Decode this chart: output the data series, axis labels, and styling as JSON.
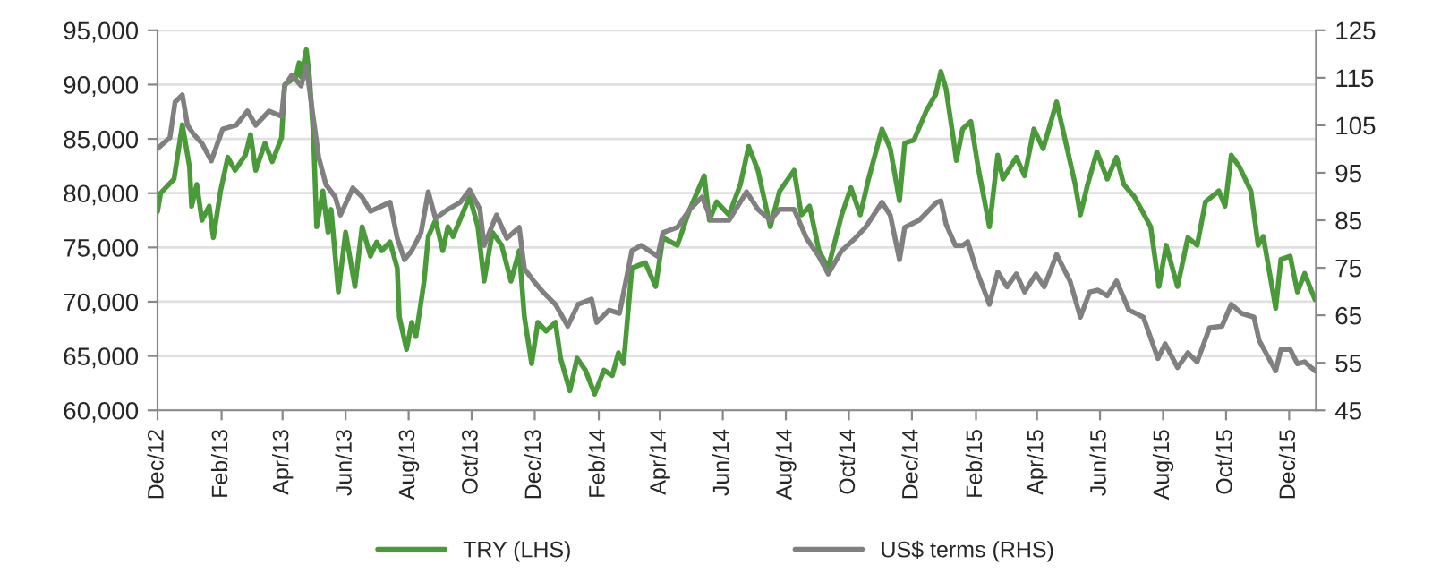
{
  "chart_data": {
    "type": "line",
    "xlim": [
      "2012-12-01",
      "2015-12-27"
    ],
    "xticks": [
      {
        "value": "2012-12-01",
        "label": "Dec/12"
      },
      {
        "value": "2013-02-01",
        "label": "Feb/13"
      },
      {
        "value": "2013-04-01",
        "label": "Apr/13"
      },
      {
        "value": "2013-06-01",
        "label": "Jun/13"
      },
      {
        "value": "2013-08-01",
        "label": "Aug/13"
      },
      {
        "value": "2013-10-01",
        "label": "Oct/13"
      },
      {
        "value": "2013-12-01",
        "label": "Dec/13"
      },
      {
        "value": "2014-02-01",
        "label": "Feb/14"
      },
      {
        "value": "2014-04-01",
        "label": "Apr/14"
      },
      {
        "value": "2014-06-01",
        "label": "Jun/14"
      },
      {
        "value": "2014-08-01",
        "label": "Aug/14"
      },
      {
        "value": "2014-10-01",
        "label": "Oct/14"
      },
      {
        "value": "2014-12-01",
        "label": "Dec/14"
      },
      {
        "value": "2015-02-01",
        "label": "Feb/15"
      },
      {
        "value": "2015-04-01",
        "label": "Apr/15"
      },
      {
        "value": "2015-06-01",
        "label": "Jun/15"
      },
      {
        "value": "2015-08-01",
        "label": "Aug/15"
      },
      {
        "value": "2015-10-01",
        "label": "Oct/15"
      },
      {
        "value": "2015-12-01",
        "label": "Dec/15"
      }
    ],
    "ylim": [
      60000,
      95000
    ],
    "yticks": [
      {
        "value": 60000,
        "label": "60,000"
      },
      {
        "value": 65000,
        "label": "65,000"
      },
      {
        "value": 70000,
        "label": "70,000"
      },
      {
        "value": 75000,
        "label": "75,000"
      },
      {
        "value": 80000,
        "label": "80,000"
      },
      {
        "value": 85000,
        "label": "85,000"
      },
      {
        "value": 90000,
        "label": "90,000"
      },
      {
        "value": 95000,
        "label": "95,000"
      }
    ],
    "y2lim": [
      45,
      125
    ],
    "y2ticks": [
      45,
      55,
      65,
      75,
      85,
      95,
      105,
      115,
      125
    ],
    "grid": "y",
    "legend": "bottom",
    "series": [
      {
        "name": "TRY (LHS)",
        "color": "#4a9a3a",
        "x": [
          "2012-12-01",
          "2012-12-04",
          "2012-12-17",
          "2012-12-25",
          "2013-01-01",
          "2013-01-03",
          "2013-01-08",
          "2013-01-13",
          "2013-01-20",
          "2013-01-24",
          "2013-01-31",
          "2013-02-07",
          "2013-02-14",
          "2013-02-24",
          "2013-03-01",
          "2013-03-06",
          "2013-03-15",
          "2013-03-22",
          "2013-03-31",
          "2013-04-03",
          "2013-04-14",
          "2013-04-17",
          "2013-04-19",
          "2013-04-24",
          "2013-04-27",
          "2013-05-01",
          "2013-05-04",
          "2013-05-10",
          "2013-05-15",
          "2013-05-18",
          "2013-05-25",
          "2013-06-01",
          "2013-06-10",
          "2013-06-17",
          "2013-06-25",
          "2013-07-01",
          "2013-07-06",
          "2013-07-14",
          "2013-07-21",
          "2013-07-23",
          "2013-07-30",
          "2013-08-04",
          "2013-08-08",
          "2013-08-16",
          "2013-08-20",
          "2013-08-27",
          "2013-09-03",
          "2013-09-08",
          "2013-09-13",
          "2013-09-29",
          "2013-10-07",
          "2013-10-13",
          "2013-10-21",
          "2013-10-30",
          "2013-11-08",
          "2013-11-16",
          "2013-11-21",
          "2013-11-28",
          "2013-12-04",
          "2013-12-12",
          "2013-12-21",
          "2013-12-26",
          "2014-01-04",
          "2014-01-11",
          "2014-01-19",
          "2014-01-28",
          "2014-02-06",
          "2014-02-14",
          "2014-02-20",
          "2014-02-25",
          "2014-03-05",
          "2014-03-18",
          "2014-03-28",
          "2014-04-04",
          "2014-04-18",
          "2014-04-30",
          "2014-05-14",
          "2014-05-19",
          "2014-05-26",
          "2014-06-07",
          "2014-06-18",
          "2014-06-26",
          "2014-07-05",
          "2014-07-17",
          "2014-07-26",
          "2014-08-09",
          "2014-08-16",
          "2014-08-24",
          "2014-09-02",
          "2014-09-11",
          "2014-09-24",
          "2014-10-03",
          "2014-10-12",
          "2014-10-20",
          "2014-11-02",
          "2014-11-10",
          "2014-11-19",
          "2014-11-24",
          "2014-12-03",
          "2014-12-15",
          "2014-12-24",
          "2014-12-29",
          "2015-01-03",
          "2015-01-10",
          "2015-01-13",
          "2015-01-19",
          "2015-01-27",
          "2015-02-03",
          "2015-02-14",
          "2015-02-22",
          "2015-02-27",
          "2015-03-12",
          "2015-03-20",
          "2015-03-29",
          "2015-04-07",
          "2015-04-20",
          "2015-04-29",
          "2015-05-08",
          "2015-05-13",
          "2015-05-20",
          "2015-05-29",
          "2015-06-08",
          "2015-06-17",
          "2015-06-24",
          "2015-07-04",
          "2015-07-11",
          "2015-07-20",
          "2015-07-28",
          "2015-08-04",
          "2015-08-15",
          "2015-08-25",
          "2015-09-03",
          "2015-09-11",
          "2015-09-24",
          "2015-09-30",
          "2015-10-06",
          "2015-10-14",
          "2015-10-25",
          "2015-11-01",
          "2015-11-06",
          "2015-11-18",
          "2015-11-23",
          "2015-12-02",
          "2015-12-09",
          "2015-12-16",
          "2015-12-26"
        ],
        "values": [
          78300,
          80000,
          81300,
          86300,
          82400,
          78800,
          80800,
          77500,
          78800,
          75900,
          80200,
          83300,
          82100,
          83500,
          85400,
          82100,
          84600,
          82900,
          85100,
          90000,
          90700,
          92000,
          90700,
          93200,
          90700,
          85100,
          76900,
          80200,
          76400,
          78500,
          70900,
          76400,
          71400,
          76900,
          74200,
          75500,
          74700,
          75500,
          73100,
          68600,
          65600,
          68100,
          66800,
          71900,
          76000,
          77500,
          74700,
          76900,
          76000,
          79700,
          76900,
          71900,
          76400,
          75200,
          71900,
          74700,
          68600,
          64300,
          68100,
          67300,
          68100,
          64800,
          61800,
          64800,
          63700,
          61500,
          63700,
          63200,
          65300,
          64300,
          73100,
          73600,
          71400,
          75900,
          75200,
          78500,
          81600,
          77500,
          79200,
          78000,
          80800,
          84300,
          82100,
          76900,
          80200,
          82100,
          78000,
          78800,
          74700,
          73100,
          78000,
          80500,
          78000,
          81300,
          85900,
          84100,
          79300,
          84600,
          84900,
          87600,
          89100,
          91200,
          89600,
          85100,
          83000,
          85900,
          86600,
          82400,
          76900,
          83500,
          81300,
          83300,
          81600,
          85900,
          84100,
          88400,
          84600,
          80800,
          78000,
          80800,
          83800,
          81300,
          83300,
          80800,
          79700,
          78500,
          76900,
          71400,
          75200,
          71400,
          75900,
          75200,
          79200,
          80200,
          78800,
          83500,
          82400,
          80200,
          75200,
          76000,
          69400,
          73900,
          74200,
          70900,
          72600,
          70200
        ]
      },
      {
        "name": "US$ terms (RHS)",
        "color": "#808080",
        "axis": "y2",
        "x": [
          "2012-12-01",
          "2012-12-13",
          "2012-12-18",
          "2012-12-25",
          "2012-12-30",
          "2013-01-05",
          "2013-01-13",
          "2013-01-22",
          "2013-02-02",
          "2013-02-15",
          "2013-02-26",
          "2013-03-06",
          "2013-03-19",
          "2013-03-31",
          "2013-04-03",
          "2013-04-10",
          "2013-04-19",
          "2013-04-24",
          "2013-05-01",
          "2013-05-06",
          "2013-05-13",
          "2013-05-22",
          "2013-05-27",
          "2013-06-08",
          "2013-06-17",
          "2013-06-25",
          "2013-07-06",
          "2013-07-14",
          "2013-07-21",
          "2013-07-28",
          "2013-08-04",
          "2013-08-13",
          "2013-08-20",
          "2013-08-27",
          "2013-09-08",
          "2013-09-20",
          "2013-09-29",
          "2013-10-09",
          "2013-10-13",
          "2013-10-25",
          "2013-11-04",
          "2013-11-16",
          "2013-11-21",
          "2013-11-30",
          "2013-12-09",
          "2013-12-21",
          "2014-01-02",
          "2014-01-12",
          "2014-01-25",
          "2014-01-30",
          "2014-02-11",
          "2014-02-21",
          "2014-03-05",
          "2014-03-14",
          "2014-03-30",
          "2014-04-04",
          "2014-04-18",
          "2014-04-30",
          "2014-05-12",
          "2014-05-21",
          "2014-06-07",
          "2014-06-24",
          "2014-07-05",
          "2014-07-17",
          "2014-07-26",
          "2014-08-09",
          "2014-08-21",
          "2014-09-02",
          "2014-09-11",
          "2014-09-24",
          "2014-10-07",
          "2014-10-17",
          "2014-11-02",
          "2014-11-10",
          "2014-11-19",
          "2014-11-24",
          "2014-12-08",
          "2014-12-25",
          "2014-12-29",
          "2015-01-03",
          "2015-01-12",
          "2015-01-19",
          "2015-01-24",
          "2015-02-01",
          "2015-02-14",
          "2015-02-22",
          "2015-03-03",
          "2015-03-12",
          "2015-03-20",
          "2015-03-31",
          "2015-04-08",
          "2015-04-20",
          "2015-05-03",
          "2015-05-13",
          "2015-05-22",
          "2015-05-30",
          "2015-06-08",
          "2015-06-17",
          "2015-06-29",
          "2015-07-13",
          "2015-07-27",
          "2015-08-03",
          "2015-08-15",
          "2015-08-25",
          "2015-09-03",
          "2015-09-15",
          "2015-09-27",
          "2015-10-06",
          "2015-10-16",
          "2015-10-28",
          "2015-11-02",
          "2015-11-18",
          "2015-11-23",
          "2015-12-02",
          "2015-12-09",
          "2015-12-16",
          "2015-12-26"
        ],
        "values": [
          100.1,
          102.4,
          109.9,
          111.4,
          105.0,
          103.1,
          101.2,
          97.5,
          104.2,
          105.0,
          108.0,
          105.0,
          108.0,
          106.9,
          113.3,
          115.6,
          113.3,
          117.5,
          106.1,
          98.2,
          92.5,
          89.9,
          86.1,
          91.8,
          89.9,
          86.9,
          88.0,
          88.8,
          81.2,
          76.7,
          78.6,
          82.4,
          91.0,
          85.4,
          87.3,
          88.8,
          91.4,
          87.3,
          79.7,
          86.1,
          81.2,
          83.5,
          74.8,
          72.2,
          69.9,
          67.3,
          62.7,
          67.3,
          68.4,
          63.5,
          66.1,
          65.4,
          78.6,
          79.7,
          77.4,
          82.4,
          83.5,
          87.3,
          89.9,
          85.0,
          85.0,
          91.0,
          87.3,
          85.0,
          87.3,
          87.3,
          81.2,
          77.4,
          73.7,
          78.6,
          81.2,
          83.5,
          88.8,
          86.1,
          76.7,
          83.5,
          85.0,
          88.8,
          89.1,
          84.2,
          79.7,
          79.7,
          80.5,
          74.8,
          67.3,
          74.1,
          71.0,
          73.7,
          69.9,
          73.7,
          71.0,
          77.8,
          72.2,
          64.6,
          69.9,
          70.3,
          69.1,
          72.2,
          66.1,
          64.6,
          55.9,
          59.0,
          54.0,
          57.1,
          55.2,
          62.4,
          62.7,
          67.3,
          65.4,
          64.6,
          59.7,
          53.3,
          57.8,
          57.8,
          54.8,
          55.2,
          53.3
        ]
      }
    ]
  }
}
